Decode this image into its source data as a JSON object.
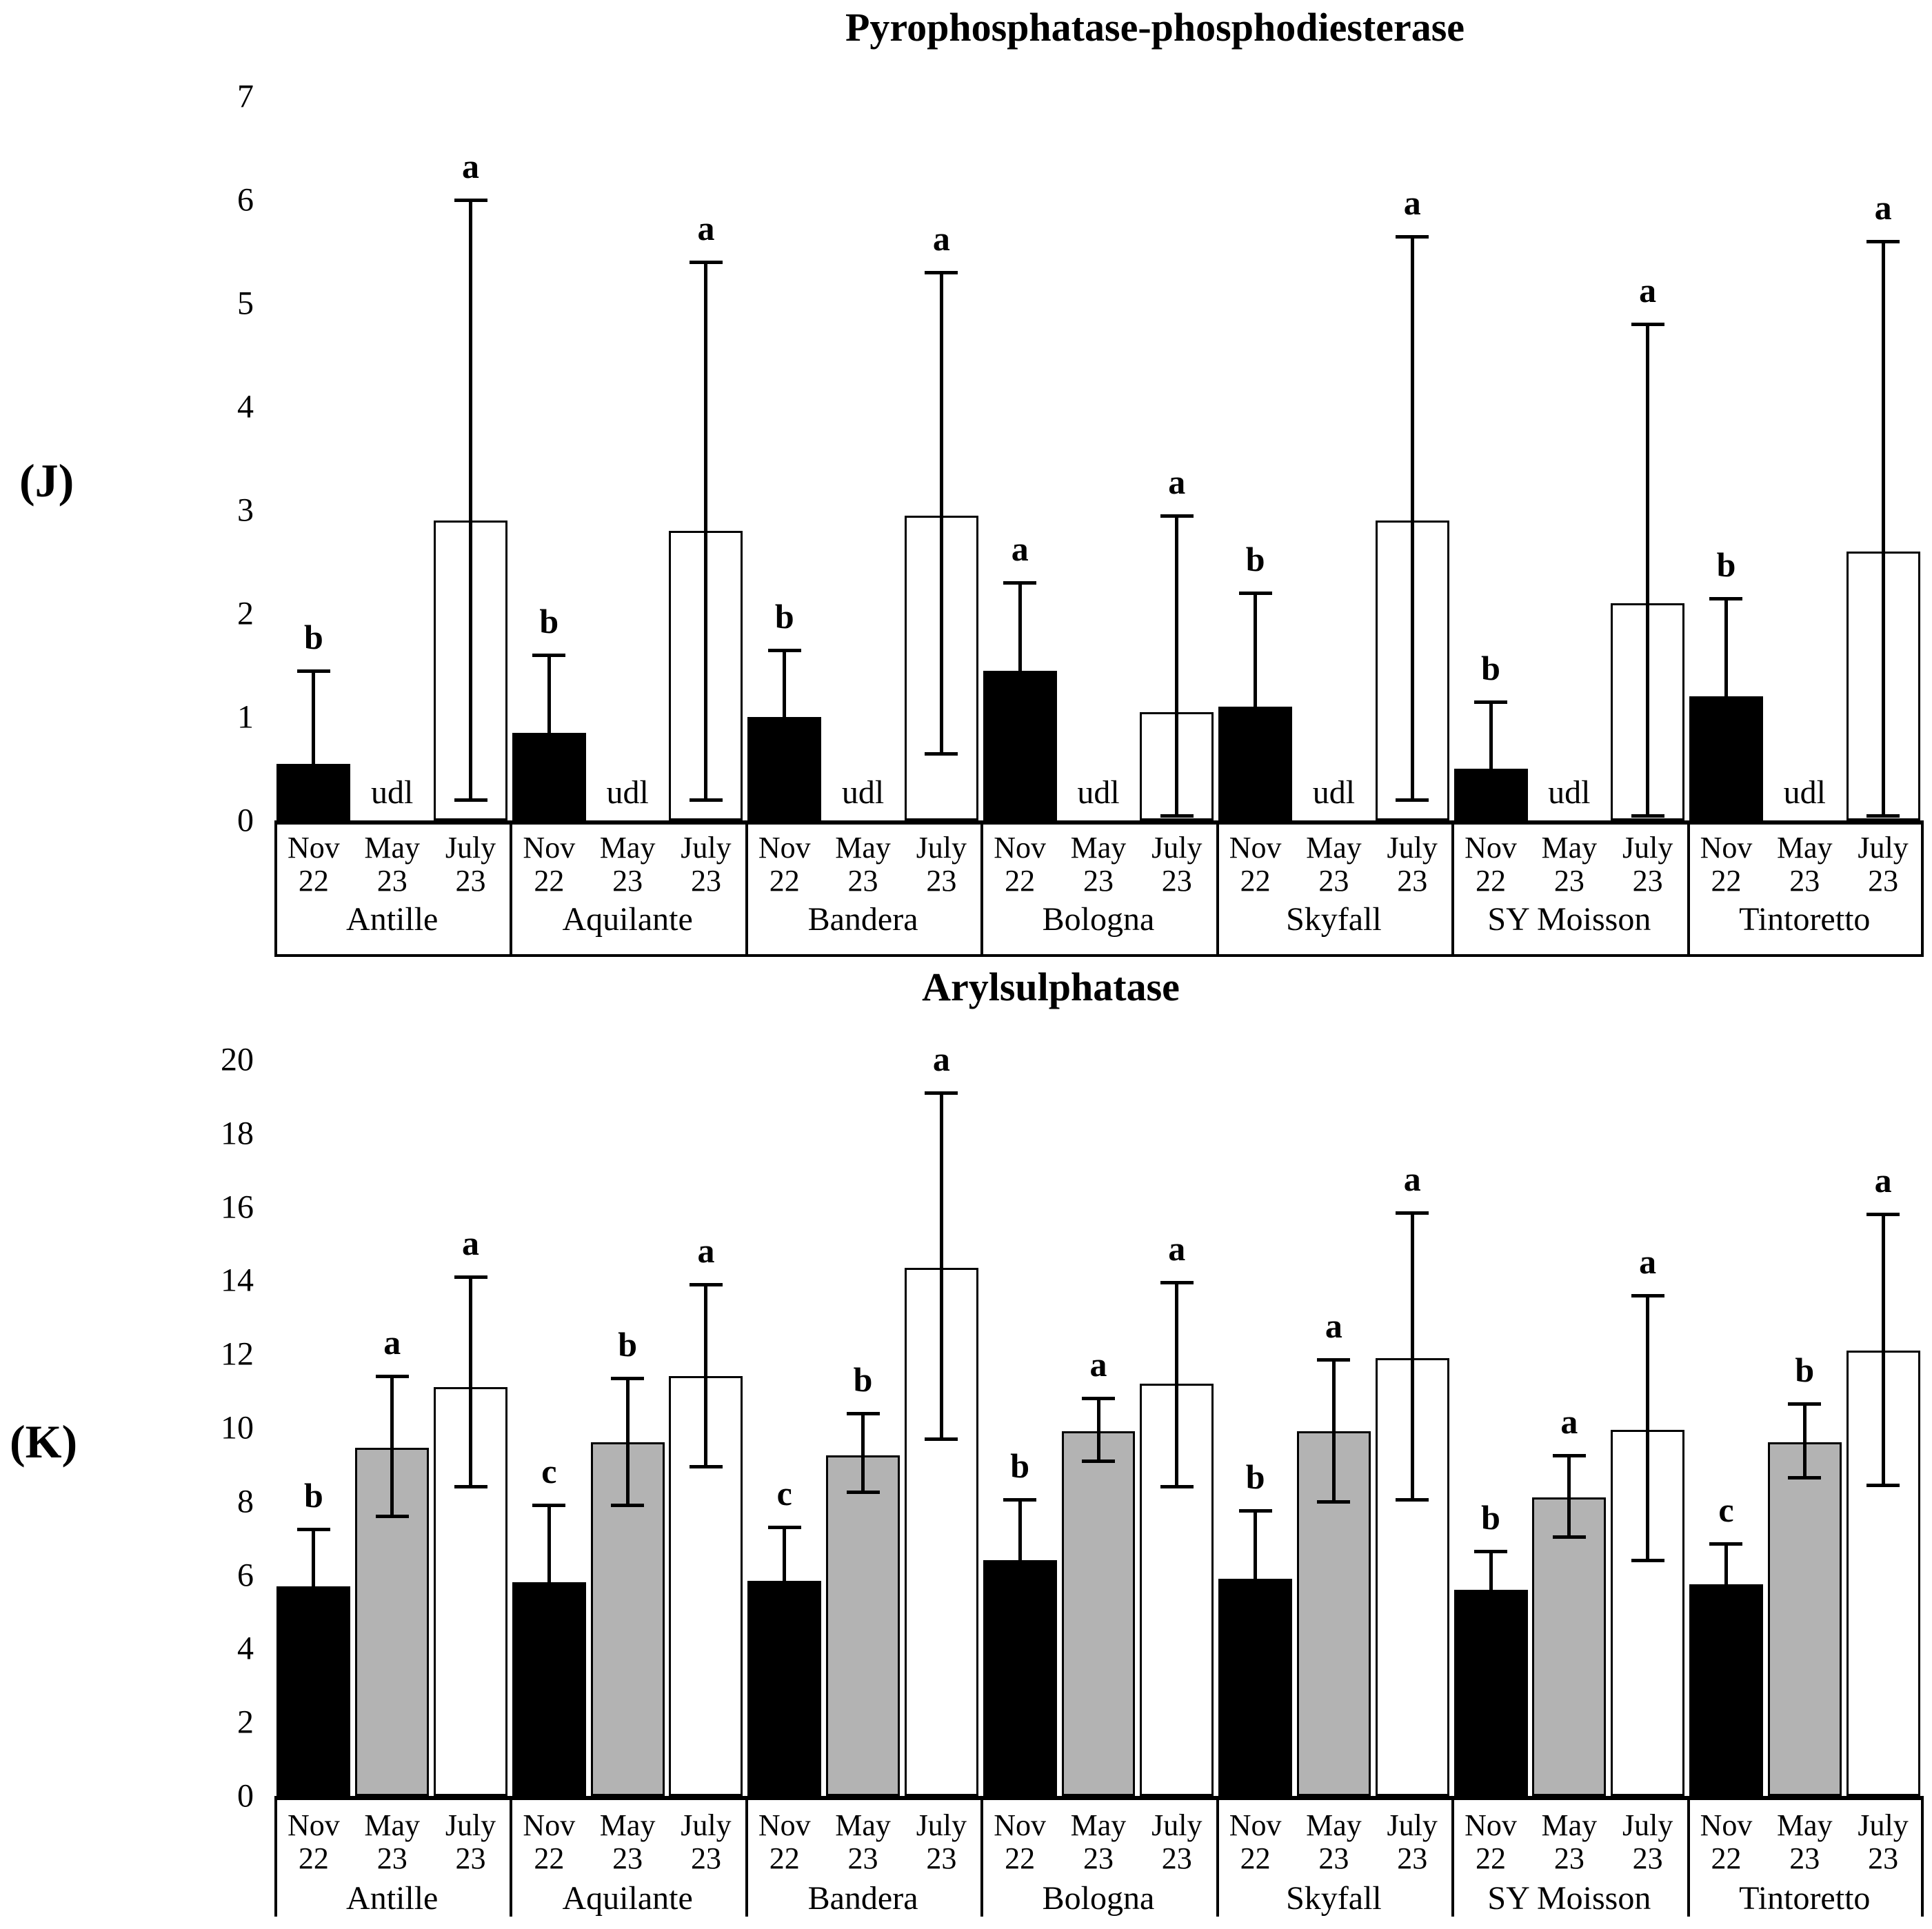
{
  "figure": {
    "background": "#ffffff",
    "bar_colors": {
      "nov": "#000000",
      "may": "#b3b3b3",
      "july": "#ffffff"
    }
  },
  "chart_data": [
    {
      "type": "bar",
      "panel_label": "(J)",
      "title": "Pyrophosphatase-phosphodiesterase",
      "ylim": [
        0,
        7
      ],
      "ytick_step": 1,
      "ytick_labels": [
        "0",
        "1",
        "2",
        "3",
        "4",
        "5",
        "6",
        "7"
      ],
      "grid": false,
      "legend": "none",
      "udl_label": "udl",
      "month_labels": [
        "Nov\n22",
        "May\n23",
        "July\n23"
      ],
      "categories": [
        "Antille",
        "Aquilante",
        "Bandera",
        "Bologna",
        "Skyfall",
        "SY Moisson",
        "Tintoretto"
      ],
      "groups": [
        {
          "name": "Antille",
          "bars": [
            {
              "month": "Nov 22",
              "value": 0.55,
              "whisker_top": 1.45,
              "whisker_bottom": null,
              "letter": "b",
              "fill": "#000000"
            },
            {
              "month": "May 23",
              "udl": true
            },
            {
              "month": "July 23",
              "value": 2.9,
              "whisker_top": 6.0,
              "whisker_bottom": 0.2,
              "letter": "a",
              "fill": "#ffffff"
            }
          ]
        },
        {
          "name": "Aquilante",
          "bars": [
            {
              "month": "Nov 22",
              "value": 0.85,
              "whisker_top": 1.6,
              "whisker_bottom": null,
              "letter": "b",
              "fill": "#000000"
            },
            {
              "month": "May 23",
              "udl": true
            },
            {
              "month": "July 23",
              "value": 2.8,
              "whisker_top": 5.4,
              "whisker_bottom": 0.2,
              "letter": "a",
              "fill": "#ffffff"
            }
          ]
        },
        {
          "name": "Bandera",
          "bars": [
            {
              "month": "Nov 22",
              "value": 1.0,
              "whisker_top": 1.65,
              "whisker_bottom": null,
              "letter": "b",
              "fill": "#000000"
            },
            {
              "month": "May 23",
              "udl": true
            },
            {
              "month": "July 23",
              "value": 2.95,
              "whisker_top": 5.3,
              "whisker_bottom": 0.65,
              "letter": "a",
              "fill": "#ffffff"
            }
          ]
        },
        {
          "name": "Bologna",
          "bars": [
            {
              "month": "Nov 22",
              "value": 1.45,
              "whisker_top": 2.3,
              "whisker_bottom": null,
              "letter": "a",
              "fill": "#000000"
            },
            {
              "month": "May 23",
              "udl": true
            },
            {
              "month": "July 23",
              "value": 1.05,
              "whisker_top": 2.95,
              "whisker_bottom": 0.05,
              "letter": "a",
              "fill": "#ffffff"
            }
          ]
        },
        {
          "name": "Skyfall",
          "bars": [
            {
              "month": "Nov 22",
              "value": 1.1,
              "whisker_top": 2.2,
              "whisker_bottom": null,
              "letter": "b",
              "fill": "#000000"
            },
            {
              "month": "May 23",
              "udl": true
            },
            {
              "month": "July 23",
              "value": 2.9,
              "whisker_top": 5.65,
              "whisker_bottom": 0.2,
              "letter": "a",
              "fill": "#ffffff"
            }
          ]
        },
        {
          "name": "SY Moisson",
          "bars": [
            {
              "month": "Nov 22",
              "value": 0.5,
              "whisker_top": 1.15,
              "whisker_bottom": null,
              "letter": "b",
              "fill": "#000000"
            },
            {
              "month": "May 23",
              "udl": true
            },
            {
              "month": "July 23",
              "value": 2.1,
              "whisker_top": 4.8,
              "whisker_bottom": 0.05,
              "letter": "a",
              "fill": "#ffffff"
            }
          ]
        },
        {
          "name": "Tintoretto",
          "bars": [
            {
              "month": "Nov 22",
              "value": 1.2,
              "whisker_top": 2.15,
              "whisker_bottom": null,
              "letter": "b",
              "fill": "#000000"
            },
            {
              "month": "May 23",
              "udl": true
            },
            {
              "month": "July 23",
              "value": 2.6,
              "whisker_top": 5.6,
              "whisker_bottom": 0.05,
              "letter": "a",
              "fill": "#ffffff"
            }
          ]
        }
      ]
    },
    {
      "type": "bar",
      "panel_label": "(K)",
      "title": "Arylsulphatase",
      "ylim": [
        0,
        20
      ],
      "ytick_step": 2,
      "ytick_labels": [
        "0",
        "2",
        "4",
        "6",
        "8",
        "10",
        "12",
        "14",
        "16",
        "18",
        "20"
      ],
      "grid": false,
      "legend": "none",
      "udl_label": "udl",
      "month_labels": [
        "Nov\n22",
        "May\n23",
        "July\n23"
      ],
      "categories": [
        "Antille",
        "Aquilante",
        "Bandera",
        "Bologna",
        "Skyfall",
        "SY Moisson",
        "Tintoretto"
      ],
      "groups": [
        {
          "name": "Antille",
          "bars": [
            {
              "month": "Nov 22",
              "value": 5.7,
              "whisker_top": 7.25,
              "whisker_bottom": null,
              "letter": "b",
              "fill": "#000000"
            },
            {
              "month": "May 23",
              "value": 9.45,
              "whisker_top": 11.4,
              "whisker_bottom": 7.6,
              "letter": "a",
              "fill": "#b3b3b3"
            },
            {
              "month": "July 23",
              "value": 11.1,
              "whisker_top": 14.1,
              "whisker_bottom": 8.4,
              "letter": "a",
              "fill": "#ffffff"
            }
          ]
        },
        {
          "name": "Aquilante",
          "bars": [
            {
              "month": "Nov 22",
              "value": 5.8,
              "whisker_top": 7.9,
              "whisker_bottom": null,
              "letter": "c",
              "fill": "#000000"
            },
            {
              "month": "May 23",
              "value": 9.6,
              "whisker_top": 11.35,
              "whisker_bottom": 7.9,
              "letter": "b",
              "fill": "#b3b3b3"
            },
            {
              "month": "July 23",
              "value": 11.4,
              "whisker_top": 13.9,
              "whisker_bottom": 8.95,
              "letter": "a",
              "fill": "#ffffff"
            }
          ]
        },
        {
          "name": "Bandera",
          "bars": [
            {
              "month": "Nov 22",
              "value": 5.85,
              "whisker_top": 7.3,
              "whisker_bottom": null,
              "letter": "c",
              "fill": "#000000"
            },
            {
              "month": "May 23",
              "value": 9.25,
              "whisker_top": 10.4,
              "whisker_bottom": 8.25,
              "letter": "b",
              "fill": "#b3b3b3"
            },
            {
              "month": "July 23",
              "value": 14.35,
              "whisker_top": 19.1,
              "whisker_bottom": 9.7,
              "letter": "a",
              "fill": "#ffffff"
            }
          ]
        },
        {
          "name": "Bologna",
          "bars": [
            {
              "month": "Nov 22",
              "value": 6.4,
              "whisker_top": 8.05,
              "whisker_bottom": null,
              "letter": "b",
              "fill": "#000000"
            },
            {
              "month": "May 23",
              "value": 9.9,
              "whisker_top": 10.8,
              "whisker_bottom": 9.1,
              "letter": "a",
              "fill": "#b3b3b3"
            },
            {
              "month": "July 23",
              "value": 11.2,
              "whisker_top": 13.95,
              "whisker_bottom": 8.4,
              "letter": "a",
              "fill": "#ffffff"
            }
          ]
        },
        {
          "name": "Skyfall",
          "bars": [
            {
              "month": "Nov 22",
              "value": 5.9,
              "whisker_top": 7.75,
              "whisker_bottom": null,
              "letter": "b",
              "fill": "#000000"
            },
            {
              "month": "May 23",
              "value": 9.9,
              "whisker_top": 11.85,
              "whisker_bottom": 8.0,
              "letter": "a",
              "fill": "#b3b3b3"
            },
            {
              "month": "July 23",
              "value": 11.9,
              "whisker_top": 15.85,
              "whisker_bottom": 8.05,
              "letter": "a",
              "fill": "#ffffff"
            }
          ]
        },
        {
          "name": "SY Moisson",
          "bars": [
            {
              "month": "Nov 22",
              "value": 5.6,
              "whisker_top": 6.65,
              "whisker_bottom": null,
              "letter": "b",
              "fill": "#000000"
            },
            {
              "month": "May 23",
              "value": 8.1,
              "whisker_top": 9.25,
              "whisker_bottom": 7.05,
              "letter": "a",
              "fill": "#b3b3b3"
            },
            {
              "month": "July 23",
              "value": 9.95,
              "whisker_top": 13.6,
              "whisker_bottom": 6.4,
              "letter": "a",
              "fill": "#ffffff"
            }
          ]
        },
        {
          "name": "Tintoretto",
          "bars": [
            {
              "month": "Nov 22",
              "value": 5.75,
              "whisker_top": 6.85,
              "whisker_bottom": null,
              "letter": "c",
              "fill": "#000000"
            },
            {
              "month": "May 23",
              "value": 9.6,
              "whisker_top": 10.65,
              "whisker_bottom": 8.65,
              "letter": "b",
              "fill": "#b3b3b3"
            },
            {
              "month": "July 23",
              "value": 12.1,
              "whisker_top": 15.8,
              "whisker_bottom": 8.45,
              "letter": "a",
              "fill": "#ffffff"
            }
          ]
        }
      ]
    }
  ]
}
